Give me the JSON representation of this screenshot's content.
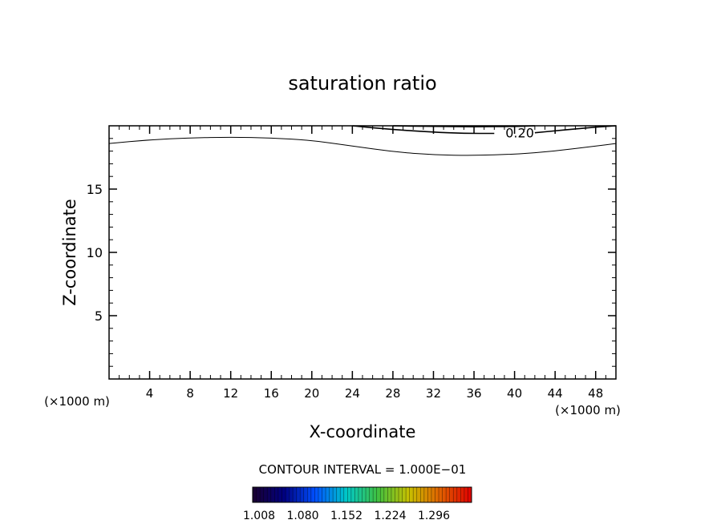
{
  "chart_data": {
    "type": "contour",
    "title": "saturation ratio",
    "xlabel": "X-coordinate",
    "ylabel": "Z-coordinate",
    "x_unit_left": "(×1000 m)",
    "x_unit_right": "(×1000 m)",
    "xlim": [
      0,
      50
    ],
    "ylim": [
      0,
      20
    ],
    "x_ticks": [
      4,
      8,
      12,
      16,
      20,
      24,
      28,
      32,
      36,
      40,
      44,
      48
    ],
    "y_ticks": [
      5,
      10,
      15
    ],
    "contours": [
      {
        "level_label": "",
        "points": [
          [
            0,
            18.6
          ],
          [
            4,
            18.9
          ],
          [
            8,
            19.05
          ],
          [
            12,
            19.1
          ],
          [
            16,
            19.05
          ],
          [
            20,
            18.85
          ],
          [
            24,
            18.4
          ],
          [
            28,
            17.95
          ],
          [
            32,
            17.7
          ],
          [
            36,
            17.65
          ],
          [
            40,
            17.75
          ],
          [
            44,
            18.0
          ],
          [
            48,
            18.4
          ],
          [
            50,
            18.6
          ]
        ]
      },
      {
        "level_label": "",
        "points": [
          [
            24,
            20.0
          ],
          [
            28,
            19.7
          ],
          [
            32,
            19.5
          ],
          [
            35,
            19.4
          ],
          [
            38,
            19.4
          ]
        ]
      },
      {
        "level_label": "0.20",
        "points": [
          [
            42,
            19.45
          ],
          [
            44,
            19.6
          ],
          [
            46,
            19.75
          ],
          [
            48,
            19.9
          ],
          [
            50,
            20.0
          ]
        ]
      },
      {
        "level_label": "",
        "points": [
          [
            28,
            20.0
          ],
          [
            32,
            19.95
          ],
          [
            36,
            19.92
          ],
          [
            40,
            19.95
          ],
          [
            42,
            20.0
          ]
        ]
      }
    ],
    "contour_interval_text": "CONTOUR INTERVAL = 1.000E−01",
    "colorbar": {
      "labels": [
        "1.008",
        "1.080",
        "1.152",
        "1.224",
        "1.296"
      ],
      "colors": [
        "#1a0030",
        "#000080",
        "#0050ff",
        "#00c8c8",
        "#40c040",
        "#c8c000",
        "#e06000",
        "#e00000"
      ]
    }
  }
}
